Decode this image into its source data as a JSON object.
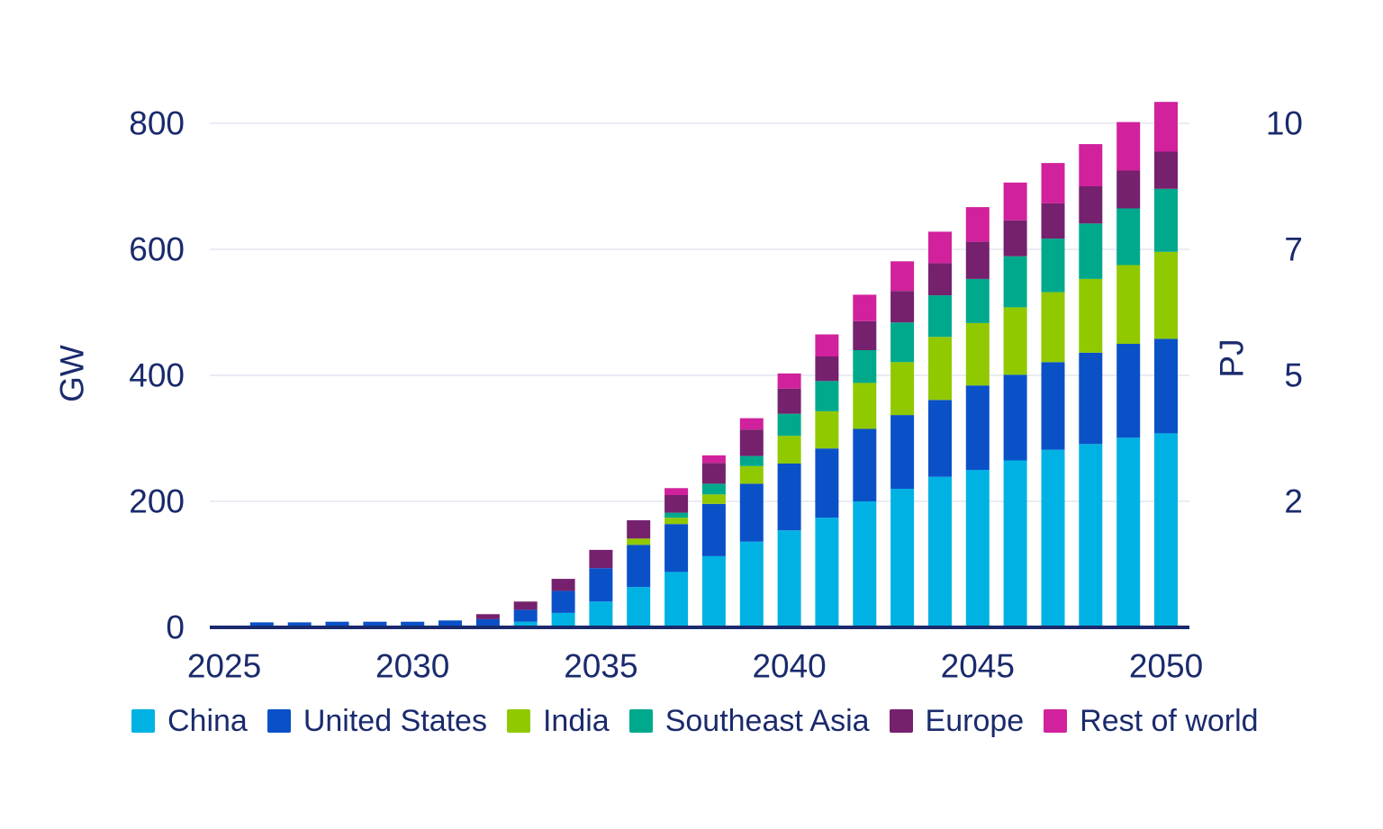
{
  "chart_data": {
    "type": "bar",
    "stacked": true,
    "title": "",
    "x": [
      2025,
      2026,
      2027,
      2028,
      2029,
      2030,
      2031,
      2032,
      2033,
      2034,
      2035,
      2036,
      2037,
      2038,
      2039,
      2040,
      2041,
      2042,
      2043,
      2044,
      2045,
      2046,
      2047,
      2048,
      2049,
      2050
    ],
    "x_ticks": [
      2025,
      2030,
      2035,
      2040,
      2045,
      2050
    ],
    "series": [
      {
        "name": "China",
        "color": "#00b2e3",
        "values": [
          0,
          0,
          0,
          0,
          0,
          0,
          0,
          2,
          9,
          23,
          41,
          64,
          88,
          113,
          136,
          154,
          174,
          200,
          220,
          239,
          250,
          265,
          282,
          291,
          301,
          308
        ]
      },
      {
        "name": "United States",
        "color": "#0a51c8",
        "values": [
          1,
          8,
          8,
          9,
          9,
          9,
          11,
          11,
          19,
          35,
          53,
          67,
          76,
          83,
          92,
          106,
          110,
          115,
          117,
          122,
          134,
          136,
          139,
          145,
          149,
          150
        ]
      },
      {
        "name": "India",
        "color": "#90c900",
        "values": [
          0,
          0,
          0,
          0,
          0,
          0,
          0,
          0,
          0,
          0,
          0,
          10,
          10,
          15,
          28,
          44,
          59,
          73,
          84,
          100,
          99,
          107,
          111,
          117,
          125,
          138
        ]
      },
      {
        "name": "Southeast Asia",
        "color": "#00a98c",
        "values": [
          0,
          0,
          0,
          0,
          0,
          0,
          0,
          0,
          0,
          0,
          0,
          0,
          8,
          17,
          16,
          35,
          48,
          52,
          63,
          66,
          70,
          81,
          85,
          88,
          90,
          100
        ]
      },
      {
        "name": "Europe",
        "color": "#75216d",
        "values": [
          0,
          0,
          0,
          0,
          0,
          0,
          0,
          8,
          13,
          19,
          29,
          29,
          28,
          33,
          42,
          40,
          39,
          46,
          50,
          51,
          59,
          57,
          56,
          59,
          60,
          59
        ]
      },
      {
        "name": "Rest of world",
        "color": "#d1219c",
        "values": [
          0,
          0,
          0,
          0,
          0,
          0,
          0,
          0,
          0,
          0,
          0,
          0,
          11,
          12,
          18,
          24,
          35,
          42,
          47,
          50,
          55,
          60,
          64,
          67,
          77,
          79
        ]
      }
    ],
    "left_axis": {
      "label": "GW",
      "ticks": [
        0,
        200,
        400,
        600,
        800
      ],
      "range": [
        0,
        860
      ]
    },
    "right_axis": {
      "label": "PJ",
      "ticks": [
        {
          "at_gw": 200,
          "label": "2"
        },
        {
          "at_gw": 400,
          "label": "5"
        },
        {
          "at_gw": 600,
          "label": "7"
        },
        {
          "at_gw": 800,
          "label": "10"
        }
      ]
    },
    "grid": "horizontal",
    "legend_position": "bottom"
  },
  "style": {
    "text_color": "#1a2a6c",
    "grid_color": "#e9ecf3",
    "baseline_color": "#1a2a6c",
    "background": "#ffffff"
  }
}
